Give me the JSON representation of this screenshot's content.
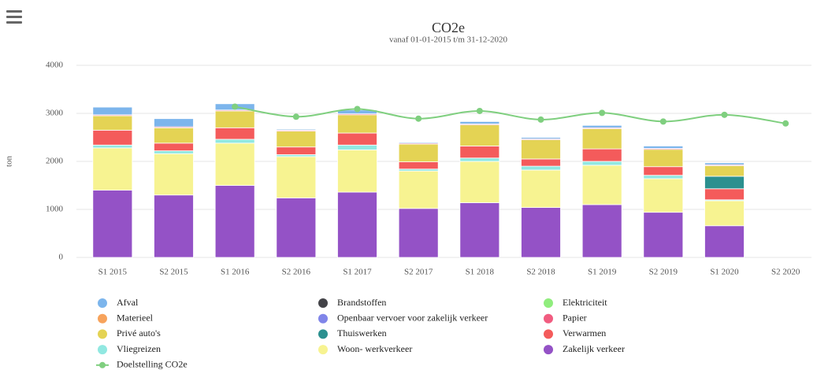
{
  "chart_data": {
    "type": "bar",
    "stacked": true,
    "title": "CO2e",
    "subtitle": "vanaf 01-01-2015 t/m 31-12-2020",
    "y_label": "ton",
    "categories": [
      "S1 2015",
      "S2 2015",
      "S1 2016",
      "S2 2016",
      "S1 2017",
      "S2 2017",
      "S1 2018",
      "S2 2018",
      "S1 2019",
      "S2 2019",
      "S1 2020",
      "S2 2020"
    ],
    "ylim": [
      0,
      4000
    ],
    "yticks": [
      0,
      1000,
      2000,
      3000,
      4000
    ],
    "grid": true,
    "series": [
      {
        "name": "Afval",
        "color": "#7cb5ec",
        "values": [
          160,
          170,
          130,
          20,
          80,
          20,
          50,
          30,
          50,
          50,
          40,
          0
        ]
      },
      {
        "name": "Brandstoffen",
        "color": "#434348",
        "values": [
          0,
          0,
          0,
          0,
          0,
          0,
          0,
          0,
          0,
          0,
          0,
          0
        ]
      },
      {
        "name": "Elektriciteit",
        "color": "#90ed7d",
        "values": [
          0,
          0,
          0,
          0,
          0,
          0,
          0,
          0,
          0,
          0,
          0,
          0
        ]
      },
      {
        "name": "Materieel",
        "color": "#f7a35c",
        "values": [
          0,
          0,
          0,
          0,
          0,
          0,
          0,
          0,
          0,
          0,
          0,
          0
        ]
      },
      {
        "name": "Openbaar vervoer voor zakelijk verkeer",
        "color": "#8085e9",
        "values": [
          0,
          0,
          0,
          0,
          0,
          0,
          0,
          0,
          0,
          0,
          0,
          0
        ]
      },
      {
        "name": "Papier",
        "color": "#f15c80",
        "values": [
          20,
          20,
          20,
          20,
          20,
          20,
          20,
          20,
          20,
          20,
          20,
          0
        ]
      },
      {
        "name": "Privé auto's",
        "color": "#e4d354",
        "values": [
          300,
          320,
          350,
          330,
          380,
          370,
          440,
          400,
          420,
          360,
          220,
          0
        ]
      },
      {
        "name": "Thuiswerken",
        "color": "#2b908f",
        "values": [
          0,
          0,
          0,
          0,
          0,
          0,
          0,
          0,
          0,
          0,
          260,
          0
        ]
      },
      {
        "name": "Verwarmen",
        "color": "#f45b5b",
        "values": [
          310,
          160,
          240,
          160,
          250,
          150,
          250,
          150,
          260,
          180,
          230,
          0
        ]
      },
      {
        "name": "Vliegreizen",
        "color": "#91e8e1",
        "values": [
          60,
          60,
          80,
          40,
          100,
          40,
          70,
          80,
          80,
          70,
          20,
          0
        ]
      },
      {
        "name": "Woon- werkverkeer",
        "color": "#f7f391",
        "values": [
          880,
          860,
          880,
          860,
          880,
          780,
          860,
          780,
          820,
          700,
          520,
          0
        ]
      },
      {
        "name": "Zakelijk verkeer",
        "color": "#9452c6",
        "values": [
          1400,
          1300,
          1500,
          1240,
          1360,
          1020,
          1140,
          1040,
          1100,
          940,
          660,
          0
        ]
      },
      {
        "name": "Doelstelling CO2e",
        "color": "#7fcf7f",
        "type": "spline",
        "values": [
          null,
          null,
          3140,
          2930,
          3090,
          2890,
          3050,
          2870,
          3010,
          2830,
          2970,
          2790
        ]
      }
    ]
  }
}
